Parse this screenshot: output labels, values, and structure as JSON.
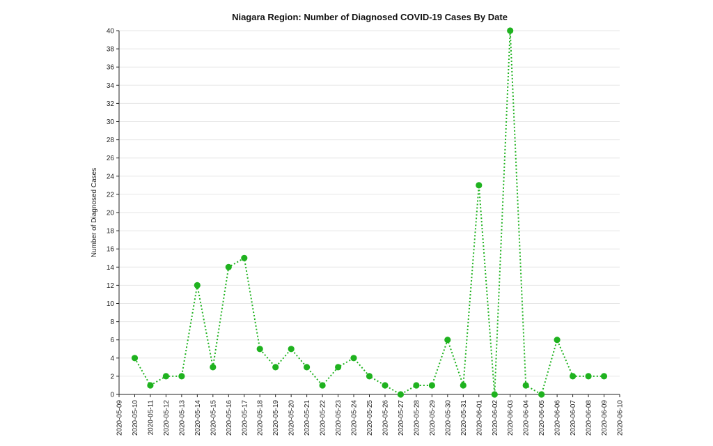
{
  "chart_data": {
    "type": "line",
    "title": "Niagara Region: Number of Diagnosed COVID-19 Cases By Date",
    "xlabel": "",
    "ylabel": "Number of Diagnosed Cases",
    "x_ticks": [
      "2020-05-09",
      "2020-05-10",
      "2020-05-11",
      "2020-05-12",
      "2020-05-13",
      "2020-05-14",
      "2020-05-15",
      "2020-05-16",
      "2020-05-17",
      "2020-05-18",
      "2020-05-19",
      "2020-05-20",
      "2020-05-21",
      "2020-05-22",
      "2020-05-23",
      "2020-05-24",
      "2020-05-25",
      "2020-05-26",
      "2020-05-27",
      "2020-05-28",
      "2020-05-29",
      "2020-05-30",
      "2020-05-31",
      "2020-06-01",
      "2020-06-02",
      "2020-06-03",
      "2020-06-04",
      "2020-06-05",
      "2020-06-06",
      "2020-06-07",
      "2020-06-08",
      "2020-06-09",
      "2020-06-10"
    ],
    "xlim": [
      "2020-05-09",
      "2020-06-10"
    ],
    "ylim": [
      0,
      40
    ],
    "y_ticks": [
      0,
      2,
      4,
      6,
      8,
      10,
      12,
      14,
      16,
      18,
      20,
      22,
      24,
      26,
      28,
      30,
      32,
      34,
      36,
      38,
      40
    ],
    "grid": true,
    "color": "#1fb21f",
    "series": [
      {
        "x": [
          "2020-05-10",
          "2020-05-11",
          "2020-05-12",
          "2020-05-13",
          "2020-05-14",
          "2020-05-15",
          "2020-05-16",
          "2020-05-17",
          "2020-05-18",
          "2020-05-19",
          "2020-05-20",
          "2020-05-21",
          "2020-05-22",
          "2020-05-23",
          "2020-05-24",
          "2020-05-25",
          "2020-05-26",
          "2020-05-27",
          "2020-05-28",
          "2020-05-29",
          "2020-05-30",
          "2020-05-31",
          "2020-06-01",
          "2020-06-02",
          "2020-06-03",
          "2020-06-04",
          "2020-06-05",
          "2020-06-06",
          "2020-06-07",
          "2020-06-08",
          "2020-06-09"
        ],
        "values": [
          4,
          1,
          2,
          2,
          12,
          3,
          14,
          15,
          5,
          3,
          5,
          3,
          1,
          3,
          4,
          2,
          1,
          0,
          1,
          1,
          6,
          1,
          23,
          0,
          40,
          1,
          0,
          6,
          2,
          2,
          2
        ]
      }
    ]
  }
}
